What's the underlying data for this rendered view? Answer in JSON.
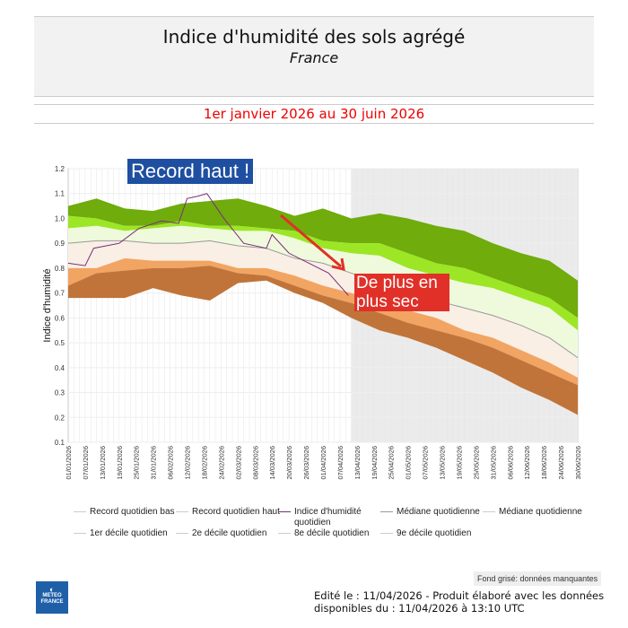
{
  "header": {
    "title": "Indice d'humidité des sols agrégé",
    "subtitle": "France"
  },
  "period": "1er janvier 2026 au 30 juin 2026",
  "colors": {
    "record_high_band": "#6fac0c",
    "d9_band": "#9ce626",
    "d8_band": "#effadc",
    "median_band": "#f9efe5",
    "d2_band": "#f2a462",
    "d1_band": "#c07439",
    "index": "#7b2d7b",
    "median": "#999999",
    "missing_bg": "#ebebeb",
    "annotation_high": "#1e4fa0",
    "annotation_dry": "#e03028"
  },
  "annotations": {
    "record_high": "Record haut !",
    "dry": "De plus en plus sec"
  },
  "chart_data": {
    "type": "area",
    "ylabel": "Indice d'humidité",
    "ylim": [
      0.1,
      1.2
    ],
    "yticks": [
      "0.1",
      "0.2",
      "0.3",
      "0.4",
      "0.5",
      "0.6",
      "0.7",
      "0.8",
      "0.9",
      "1.0",
      "1.1",
      "1.2"
    ],
    "x_start": "01/01/2026",
    "x_end": "30/06/2026",
    "missing_data_from": "11/04/2026",
    "xticks": [
      "01/01/2026",
      "07/01/2026",
      "13/01/2026",
      "19/01/2026",
      "25/01/2026",
      "31/01/2026",
      "06/02/2026",
      "12/02/2026",
      "18/02/2026",
      "24/02/2026",
      "02/03/2026",
      "08/03/2026",
      "14/03/2026",
      "20/03/2026",
      "26/03/2026",
      "01/04/2026",
      "07/04/2026",
      "13/04/2026",
      "19/04/2026",
      "25/04/2026",
      "01/05/2026",
      "07/05/2026",
      "13/05/2026",
      "19/05/2026",
      "25/05/2026",
      "31/05/2026",
      "06/06/2026",
      "12/06/2026",
      "18/06/2026",
      "24/06/2026",
      "30/06/2026"
    ],
    "band_dates": [
      "01/01",
      "11/01",
      "21/01",
      "31/01",
      "10/02",
      "20/02",
      "02/03",
      "12/03",
      "22/03",
      "01/04",
      "11/04",
      "21/04",
      "01/05",
      "11/05",
      "21/05",
      "31/05",
      "10/06",
      "20/06",
      "30/06"
    ],
    "series": [
      {
        "name": "Record quotidien haut",
        "values": [
          1.05,
          1.08,
          1.04,
          1.03,
          1.06,
          1.07,
          1.08,
          1.05,
          1.01,
          1.04,
          1.0,
          1.02,
          1.0,
          0.97,
          0.95,
          0.9,
          0.86,
          0.83,
          0.75
        ]
      },
      {
        "name": "9e décile quotidien",
        "values": [
          1.01,
          1.0,
          0.97,
          0.97,
          0.99,
          0.97,
          0.97,
          0.96,
          0.95,
          0.91,
          0.9,
          0.9,
          0.86,
          0.82,
          0.8,
          0.76,
          0.72,
          0.68,
          0.6
        ]
      },
      {
        "name": "8e décile quotidien",
        "values": [
          0.96,
          0.97,
          0.95,
          0.96,
          0.97,
          0.96,
          0.95,
          0.95,
          0.92,
          0.88,
          0.86,
          0.85,
          0.8,
          0.77,
          0.74,
          0.72,
          0.68,
          0.64,
          0.55
        ]
      },
      {
        "name": "Médiane quotidienne",
        "values": [
          0.9,
          0.91,
          0.91,
          0.9,
          0.9,
          0.91,
          0.89,
          0.88,
          0.84,
          0.82,
          0.78,
          0.74,
          0.71,
          0.67,
          0.64,
          0.61,
          0.57,
          0.52,
          0.44
        ]
      },
      {
        "name": "2e décile quotidien",
        "values": [
          0.8,
          0.8,
          0.84,
          0.83,
          0.83,
          0.83,
          0.8,
          0.8,
          0.77,
          0.73,
          0.7,
          0.67,
          0.63,
          0.6,
          0.55,
          0.52,
          0.47,
          0.42,
          0.36
        ]
      },
      {
        "name": "1er décile quotidien",
        "values": [
          0.73,
          0.78,
          0.79,
          0.8,
          0.8,
          0.81,
          0.78,
          0.77,
          0.73,
          0.69,
          0.66,
          0.62,
          0.58,
          0.55,
          0.52,
          0.48,
          0.43,
          0.38,
          0.33
        ]
      },
      {
        "name": "Record quotidien bas",
        "values": [
          0.68,
          0.68,
          0.68,
          0.72,
          0.69,
          0.67,
          0.74,
          0.75,
          0.7,
          0.66,
          0.6,
          0.55,
          0.52,
          0.48,
          0.43,
          0.38,
          0.32,
          0.27,
          0.21
        ]
      }
    ],
    "index_series": {
      "name": "Indice d'humidité quotidien",
      "dates": [
        "01/01",
        "07/01",
        "10/01",
        "19/01",
        "26/01",
        "03/02",
        "09/02",
        "12/02",
        "16/02",
        "19/02",
        "25/02",
        "04/03",
        "12/03",
        "14/03",
        "20/03",
        "27/03",
        "03/04",
        "10/04"
      ],
      "values": [
        0.82,
        0.81,
        0.88,
        0.9,
        0.96,
        0.99,
        0.98,
        1.08,
        1.09,
        1.1,
        1.0,
        0.9,
        0.88,
        0.935,
        0.86,
        0.82,
        0.78,
        0.69
      ]
    },
    "legend": [
      "Record quotidien bas",
      "Record quotidien haut",
      "Indice d'humidité quotidien",
      "Médiane quotidienne",
      "Médiane quotidienne",
      "1er décile quotidien",
      "2e décile quotidien",
      "8e décile quotidien",
      "9e décile quotidien"
    ],
    "grid": true
  },
  "footer": {
    "missing_note": "Fond grisé: données manquantes",
    "edited": "Edité le : 11/04/2026 - Produit élaboré avec les données",
    "available": "disponibles du : 11/04/2026 à 13:10 UTC",
    "logo": "METEO FRANCE"
  }
}
